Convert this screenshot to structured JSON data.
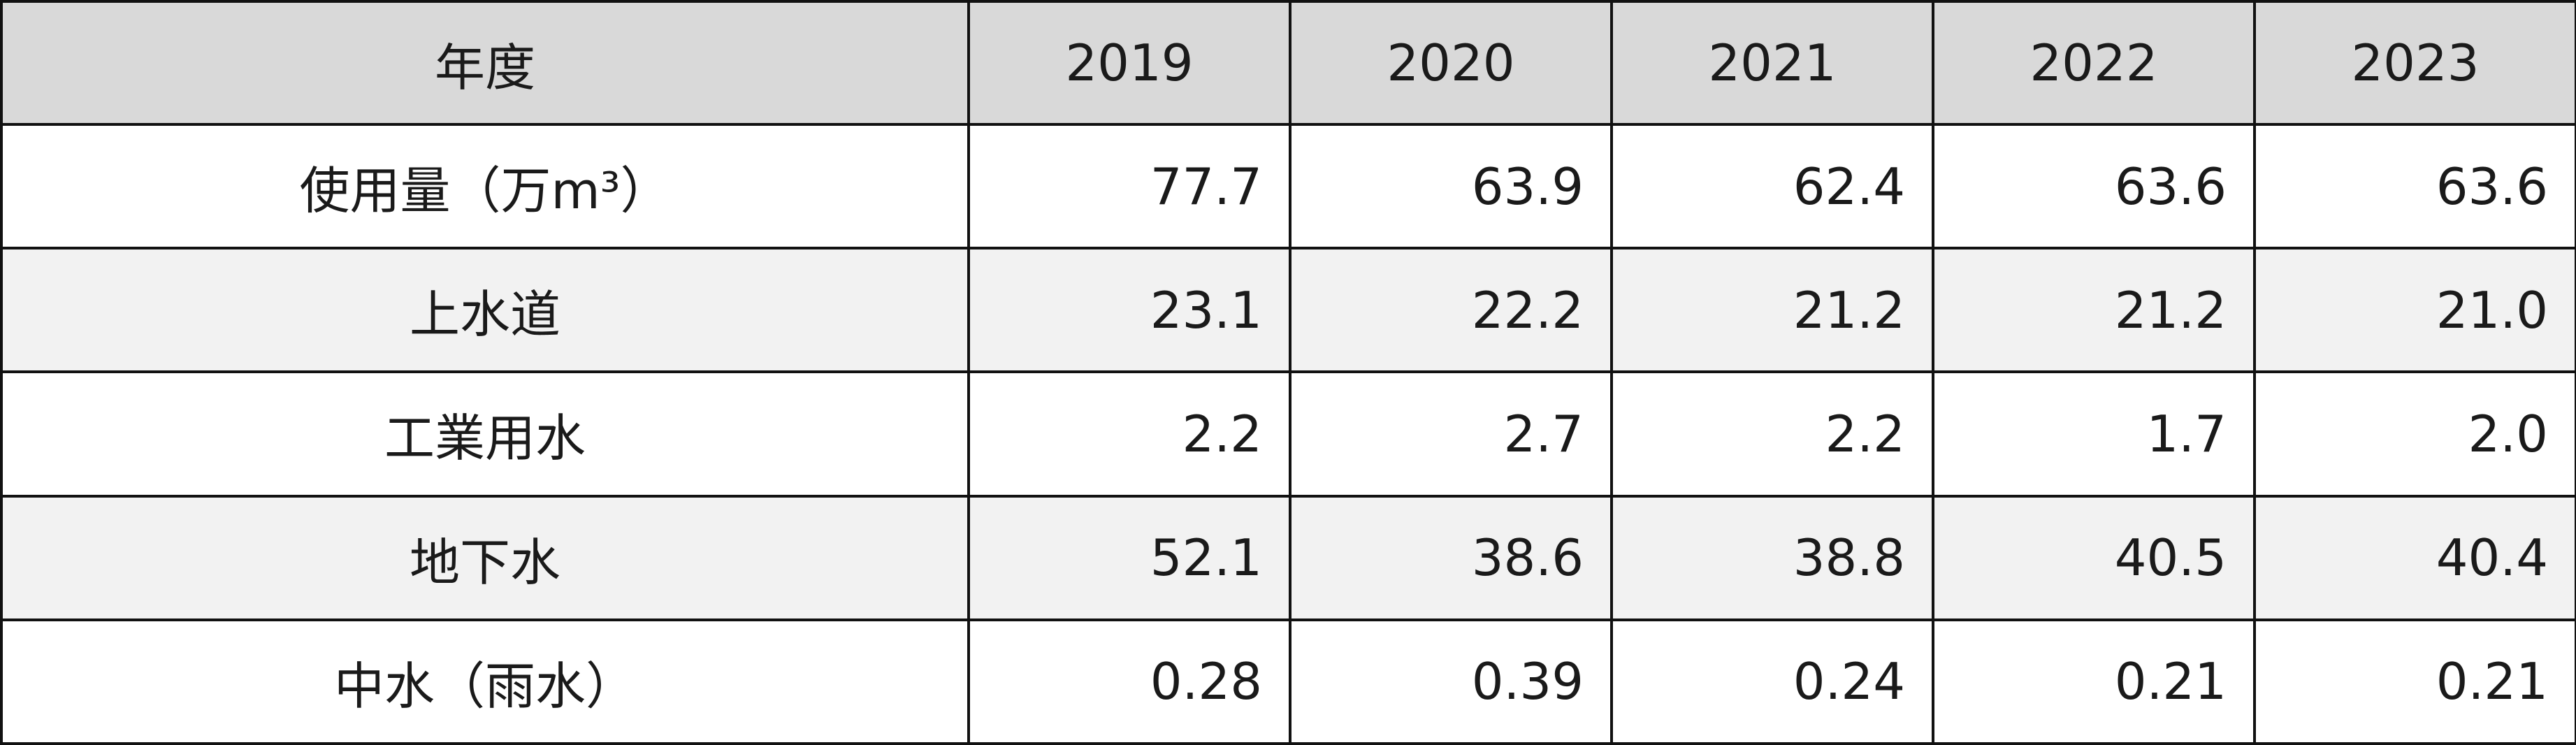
{
  "table": {
    "header": {
      "label": "年度",
      "years": [
        "2019",
        "2020",
        "2021",
        "2022",
        "2023"
      ]
    },
    "rows": [
      {
        "label": "使用量（万m³）",
        "values": [
          "77.7",
          "63.9",
          "62.4",
          "63.6",
          "63.6"
        ]
      },
      {
        "label": "上水道",
        "values": [
          "23.1",
          "22.2",
          "21.2",
          "21.2",
          "21.0"
        ]
      },
      {
        "label": "工業用水",
        "values": [
          "2.2",
          "2.7",
          "2.2",
          "1.7",
          "2.0"
        ]
      },
      {
        "label": "地下水",
        "values": [
          "52.1",
          "38.6",
          "38.8",
          "40.5",
          "40.4"
        ]
      },
      {
        "label": "中水（雨水）",
        "values": [
          "0.28",
          "0.39",
          "0.24",
          "0.21",
          "0.21"
        ]
      }
    ]
  }
}
